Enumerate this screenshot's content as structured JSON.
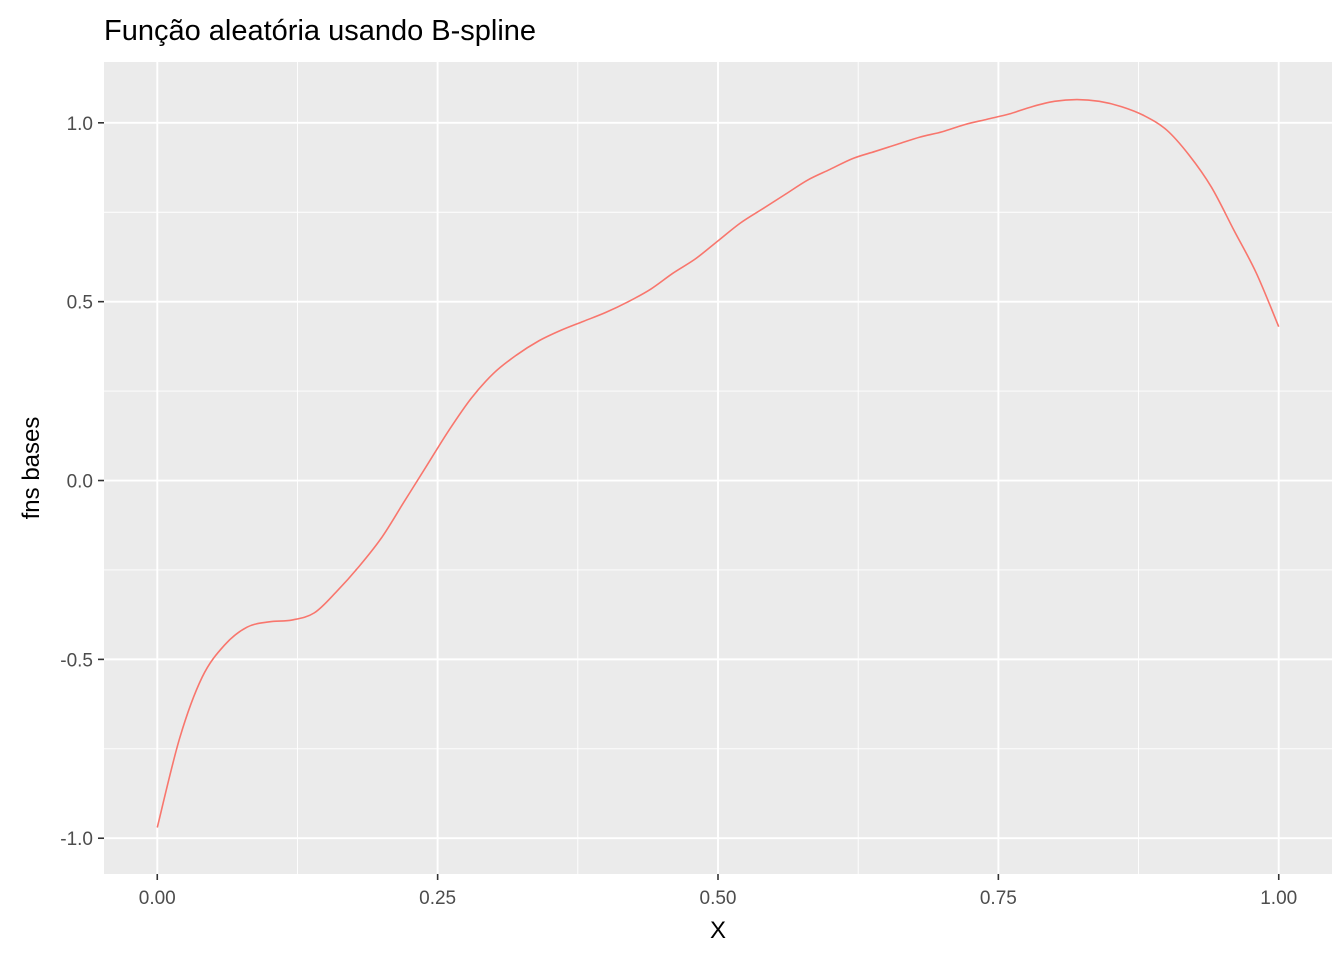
{
  "chart_data": {
    "type": "line",
    "title": "Função aleatória usando B-spline",
    "xlabel": "X",
    "ylabel": "fns bases",
    "xlim": [
      -0.0475,
      1.0475
    ],
    "ylim": [
      -1.1,
      1.17
    ],
    "x_ticks": [
      0.0,
      0.25,
      0.5,
      0.75,
      1.0
    ],
    "x_tick_labels": [
      "0.00",
      "0.25",
      "0.50",
      "0.75",
      "1.00"
    ],
    "y_ticks": [
      -1.0,
      -0.5,
      0.0,
      0.5,
      1.0
    ],
    "y_tick_labels": [
      "-1.0",
      "-0.5",
      "0.0",
      "0.5",
      "1.0"
    ],
    "grid": true,
    "legend": "none",
    "colors": {
      "panel": "#EBEBEB",
      "grid": "#FFFFFF",
      "line": "#F8766D",
      "tick_text": "#4D4D4D",
      "tick_mark": "#333333"
    },
    "series": [
      {
        "x": [
          0.0,
          0.02,
          0.04,
          0.06,
          0.08,
          0.1,
          0.12,
          0.14,
          0.16,
          0.18,
          0.2,
          0.22,
          0.24,
          0.26,
          0.28,
          0.3,
          0.32,
          0.34,
          0.36,
          0.38,
          0.4,
          0.42,
          0.44,
          0.46,
          0.48,
          0.5,
          0.52,
          0.54,
          0.56,
          0.58,
          0.6,
          0.62,
          0.64,
          0.66,
          0.68,
          0.7,
          0.72,
          0.74,
          0.76,
          0.78,
          0.8,
          0.82,
          0.84,
          0.86,
          0.88,
          0.9,
          0.92,
          0.94,
          0.96,
          0.98,
          1.0
        ],
        "y": [
          -0.97,
          -0.72,
          -0.55,
          -0.46,
          -0.41,
          -0.395,
          -0.39,
          -0.37,
          -0.31,
          -0.24,
          -0.16,
          -0.06,
          0.04,
          0.14,
          0.23,
          0.3,
          0.35,
          0.39,
          0.42,
          0.445,
          0.47,
          0.5,
          0.535,
          0.58,
          0.62,
          0.67,
          0.72,
          0.76,
          0.8,
          0.84,
          0.87,
          0.9,
          0.92,
          0.94,
          0.96,
          0.975,
          0.995,
          1.01,
          1.025,
          1.045,
          1.06,
          1.065,
          1.06,
          1.045,
          1.02,
          0.98,
          0.91,
          0.82,
          0.7,
          0.58,
          0.43
        ]
      }
    ]
  }
}
